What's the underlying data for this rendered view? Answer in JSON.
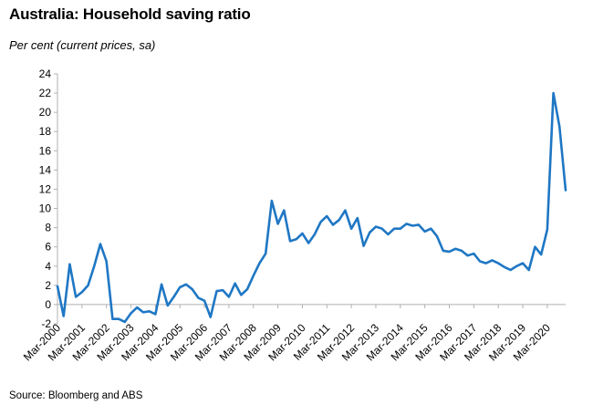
{
  "header": {
    "title": "Australia: Household saving ratio",
    "subtitle": "Per cent (current prices, sa)"
  },
  "footer": {
    "source": "Source: Bloomberg and ABS"
  },
  "colors": {
    "line": "#1f77c4",
    "axis": "#b0b0b0"
  },
  "chart_data": {
    "type": "line",
    "title": "Australia: Household saving ratio",
    "ylabel": "Per cent (current prices, sa)",
    "xlabel": "",
    "ylim": [
      -2,
      24
    ],
    "yticks": [
      -2,
      0,
      2,
      4,
      6,
      8,
      10,
      12,
      14,
      16,
      18,
      20,
      22,
      24
    ],
    "xtick_labels": [
      "Mar-2000",
      "Mar-2001",
      "Mar-2002",
      "Mar-2003",
      "Mar-2004",
      "Mar-2005",
      "Mar-2006",
      "Mar-2007",
      "Mar-2008",
      "Mar-2009",
      "Mar-2010",
      "Mar-2011",
      "Mar-2012",
      "Mar-2013",
      "Mar-2014",
      "Mar-2015",
      "Mar-2016",
      "Mar-2017",
      "Mar-2018",
      "Mar-2019",
      "Mar-2020"
    ],
    "grid": false,
    "legend": "none",
    "series": [
      {
        "x": [
          "Mar-2000",
          "Jun-2000",
          "Sep-2000",
          "Dec-2000",
          "Mar-2001",
          "Jun-2001",
          "Sep-2001",
          "Dec-2001",
          "Mar-2002",
          "Jun-2002",
          "Sep-2002",
          "Dec-2002",
          "Mar-2003",
          "Jun-2003",
          "Sep-2003",
          "Dec-2003",
          "Mar-2004",
          "Jun-2004",
          "Sep-2004",
          "Dec-2004",
          "Mar-2005",
          "Jun-2005",
          "Sep-2005",
          "Dec-2005",
          "Mar-2006",
          "Jun-2006",
          "Sep-2006",
          "Dec-2006",
          "Mar-2007",
          "Jun-2007",
          "Sep-2007",
          "Dec-2007",
          "Mar-2008",
          "Jun-2008",
          "Sep-2008",
          "Dec-2008",
          "Mar-2009",
          "Jun-2009",
          "Sep-2009",
          "Dec-2009",
          "Mar-2010",
          "Jun-2010",
          "Sep-2010",
          "Dec-2010",
          "Mar-2011",
          "Jun-2011",
          "Sep-2011",
          "Dec-2011",
          "Mar-2012",
          "Jun-2012",
          "Sep-2012",
          "Dec-2012",
          "Mar-2013",
          "Jun-2013",
          "Sep-2013",
          "Dec-2013",
          "Mar-2014",
          "Jun-2014",
          "Sep-2014",
          "Dec-2014",
          "Mar-2015",
          "Jun-2015",
          "Sep-2015",
          "Dec-2015",
          "Mar-2016",
          "Jun-2016",
          "Sep-2016",
          "Dec-2016",
          "Mar-2017",
          "Jun-2017",
          "Sep-2017",
          "Dec-2017",
          "Mar-2018",
          "Jun-2018",
          "Sep-2018",
          "Dec-2018",
          "Mar-2019",
          "Jun-2019",
          "Sep-2019",
          "Dec-2019",
          "Mar-2020",
          "Jun-2020",
          "Sep-2020",
          "Dec-2020"
        ],
        "values": [
          1.9,
          -1.2,
          4.2,
          0.8,
          1.3,
          2.0,
          4.0,
          6.3,
          4.5,
          -1.5,
          -1.5,
          -1.8,
          -0.9,
          -0.3,
          -0.8,
          -0.7,
          -1.0,
          2.1,
          -0.1,
          0.8,
          1.8,
          2.1,
          1.6,
          0.7,
          0.4,
          -1.3,
          1.4,
          1.5,
          0.8,
          2.2,
          1.0,
          1.6,
          3.0,
          4.3,
          5.3,
          10.8,
          8.4,
          9.8,
          6.6,
          6.8,
          7.4,
          6.4,
          7.3,
          8.6,
          9.2,
          8.3,
          8.8,
          9.8,
          7.9,
          9.0,
          6.1,
          7.5,
          8.1,
          7.9,
          7.3,
          7.9,
          7.9,
          8.4,
          8.2,
          8.3,
          7.6,
          7.9,
          7.1,
          5.6,
          5.5,
          5.8,
          5.6,
          5.1,
          5.3,
          4.5,
          4.3,
          4.6,
          4.3,
          3.9,
          3.6,
          4.0,
          4.3,
          3.6,
          6.0,
          5.2,
          7.8,
          22.0,
          18.5,
          11.9
        ]
      }
    ]
  }
}
